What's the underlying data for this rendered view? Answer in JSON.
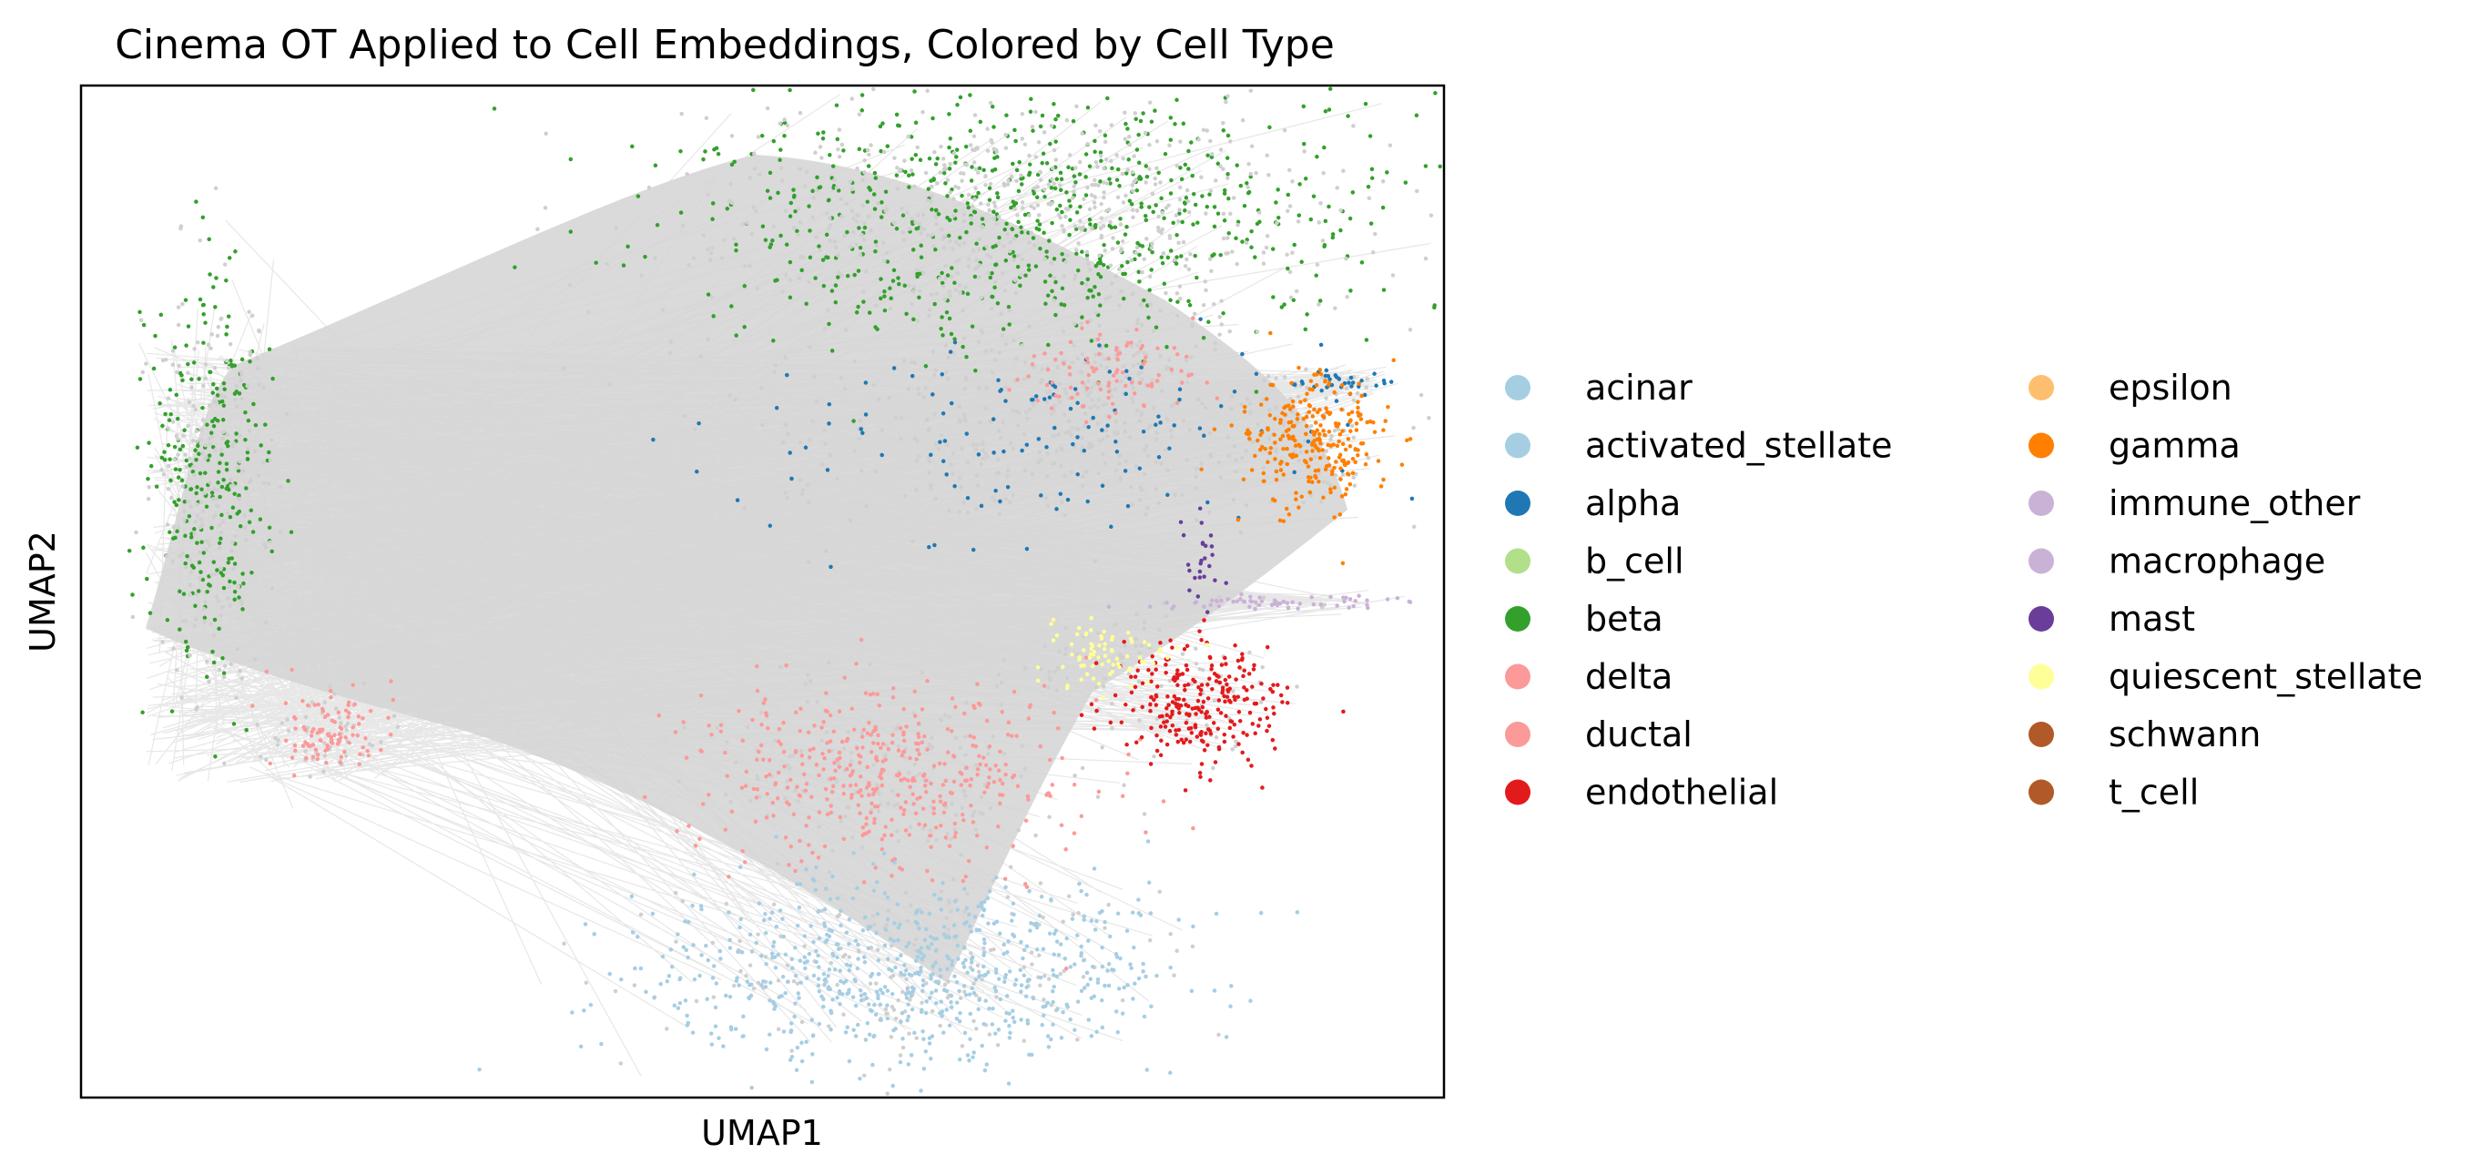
{
  "chart_data": {
    "type": "scatter",
    "title": "Cinema OT Applied to Cell Embeddings, Colored by Cell Type",
    "xlabel": "UMAP1",
    "ylabel": "UMAP2",
    "xticks": [],
    "yticks": [],
    "grid": false,
    "legend_placement": "right, outside plot, two columns",
    "background_points_color": "#d3d3d3",
    "connection_lines_color": "#d3d3d3",
    "legend": [
      {
        "name": "acinar",
        "color": "#a6cee3"
      },
      {
        "name": "activated_stellate",
        "color": "#a6cee3"
      },
      {
        "name": "alpha",
        "color": "#1f78b4"
      },
      {
        "name": "b_cell",
        "color": "#b2df8a"
      },
      {
        "name": "beta",
        "color": "#33a02c"
      },
      {
        "name": "delta",
        "color": "#fb9a99"
      },
      {
        "name": "ductal",
        "color": "#fb9a99"
      },
      {
        "name": "endothelial",
        "color": "#e31a1c"
      },
      {
        "name": "epsilon",
        "color": "#fdbf6f"
      },
      {
        "name": "gamma",
        "color": "#ff7f00"
      },
      {
        "name": "immune_other",
        "color": "#cab2d6"
      },
      {
        "name": "macrophage",
        "color": "#cab2d6"
      },
      {
        "name": "mast",
        "color": "#6a3d9a"
      },
      {
        "name": "quiescent_stellate",
        "color": "#ffff99"
      },
      {
        "name": "schwann",
        "color": "#b15928"
      },
      {
        "name": "t_cell",
        "color": "#b15928"
      }
    ]
  }
}
